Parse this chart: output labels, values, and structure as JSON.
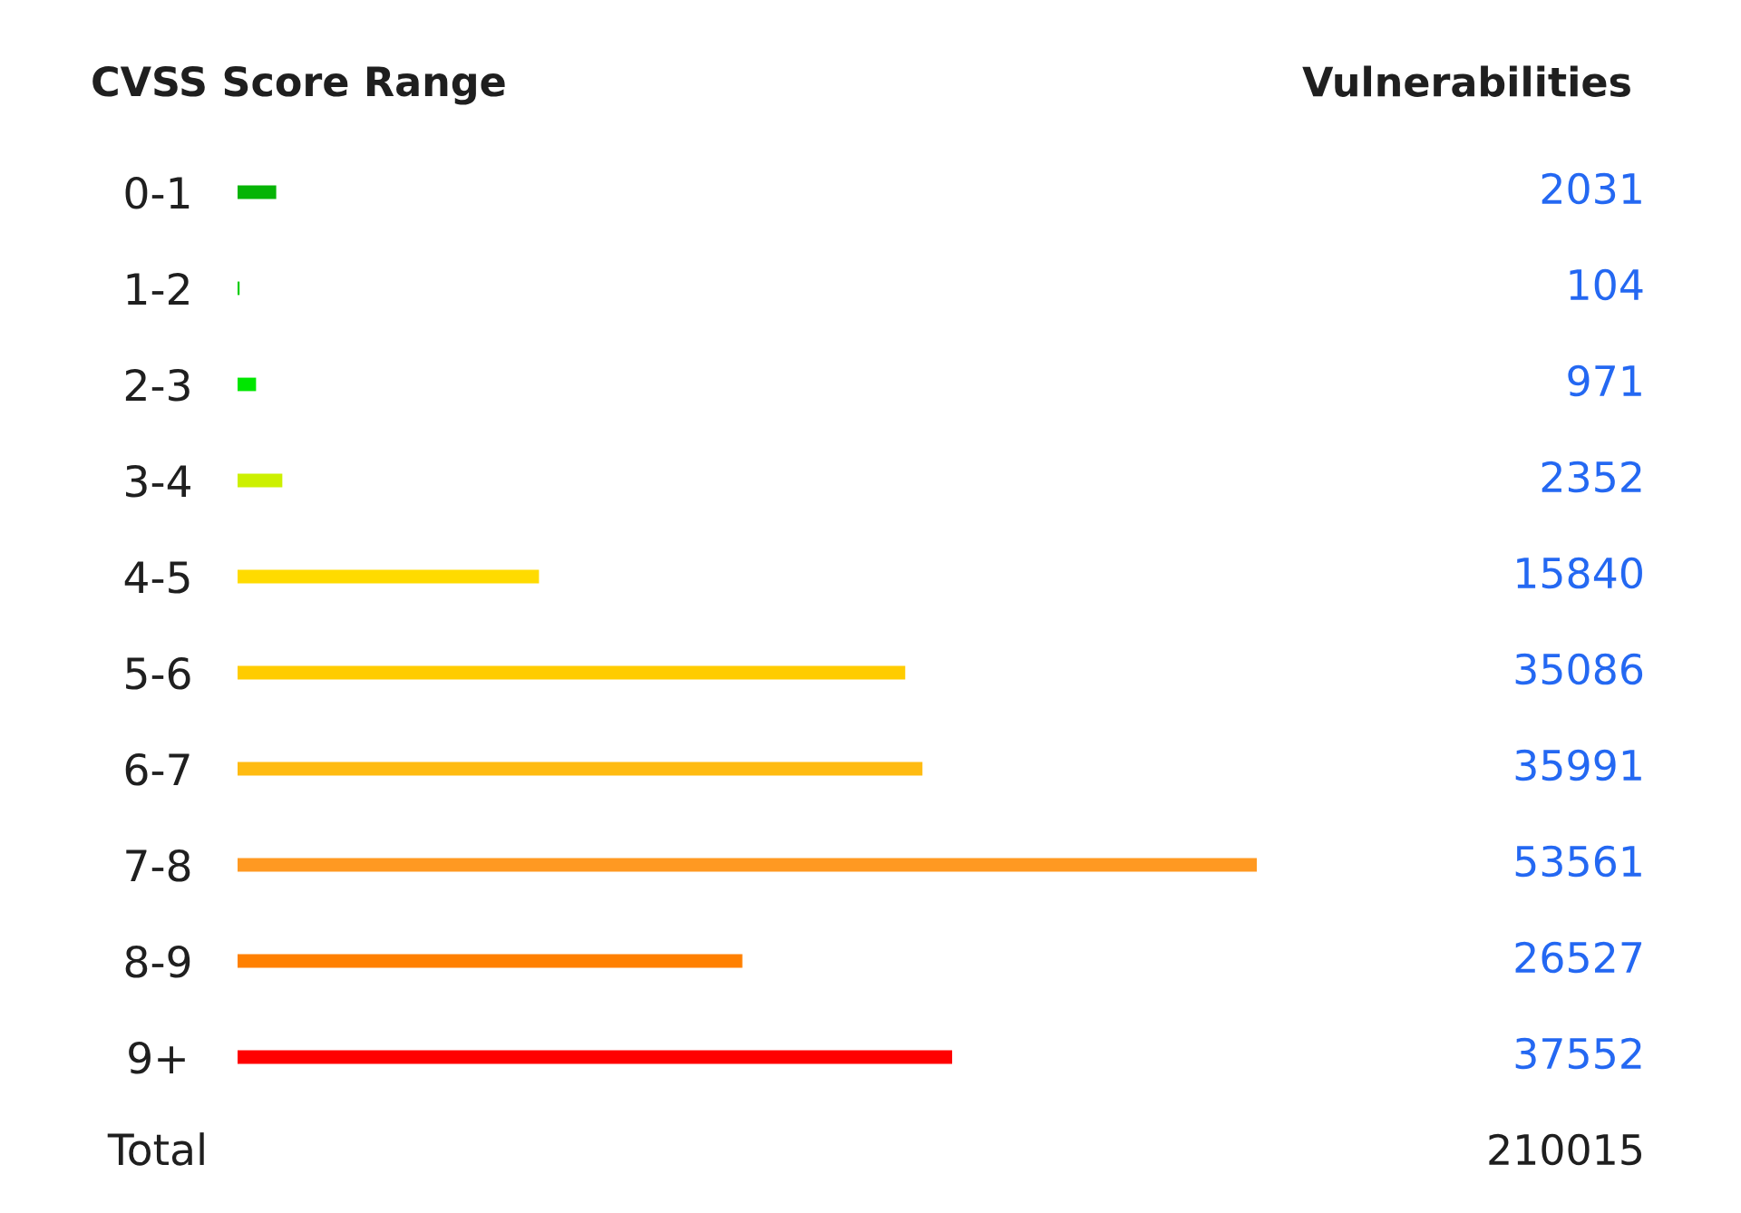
{
  "chart_data": {
    "type": "bar",
    "orientation": "horizontal",
    "ylabel": "CVSS Score Range",
    "xlabel": "Vulnerabilities",
    "categories": [
      "0-1",
      "1-2",
      "2-3",
      "3-4",
      "4-5",
      "5-6",
      "6-7",
      "7-8",
      "8-9",
      "9+"
    ],
    "values": [
      2031,
      104,
      971,
      2352,
      15840,
      35086,
      35991,
      53561,
      26527,
      37552
    ],
    "colors": [
      "#06b406",
      "#00cc00",
      "#00e600",
      "#ccf000",
      "#ffdb00",
      "#ffcc00",
      "#ffbb11",
      "#ff9922",
      "#ff8000",
      "#ff0000"
    ],
    "data_labels": true,
    "tick_labels": "y",
    "annotations": [
      "Total",
      "210015"
    ]
  }
}
